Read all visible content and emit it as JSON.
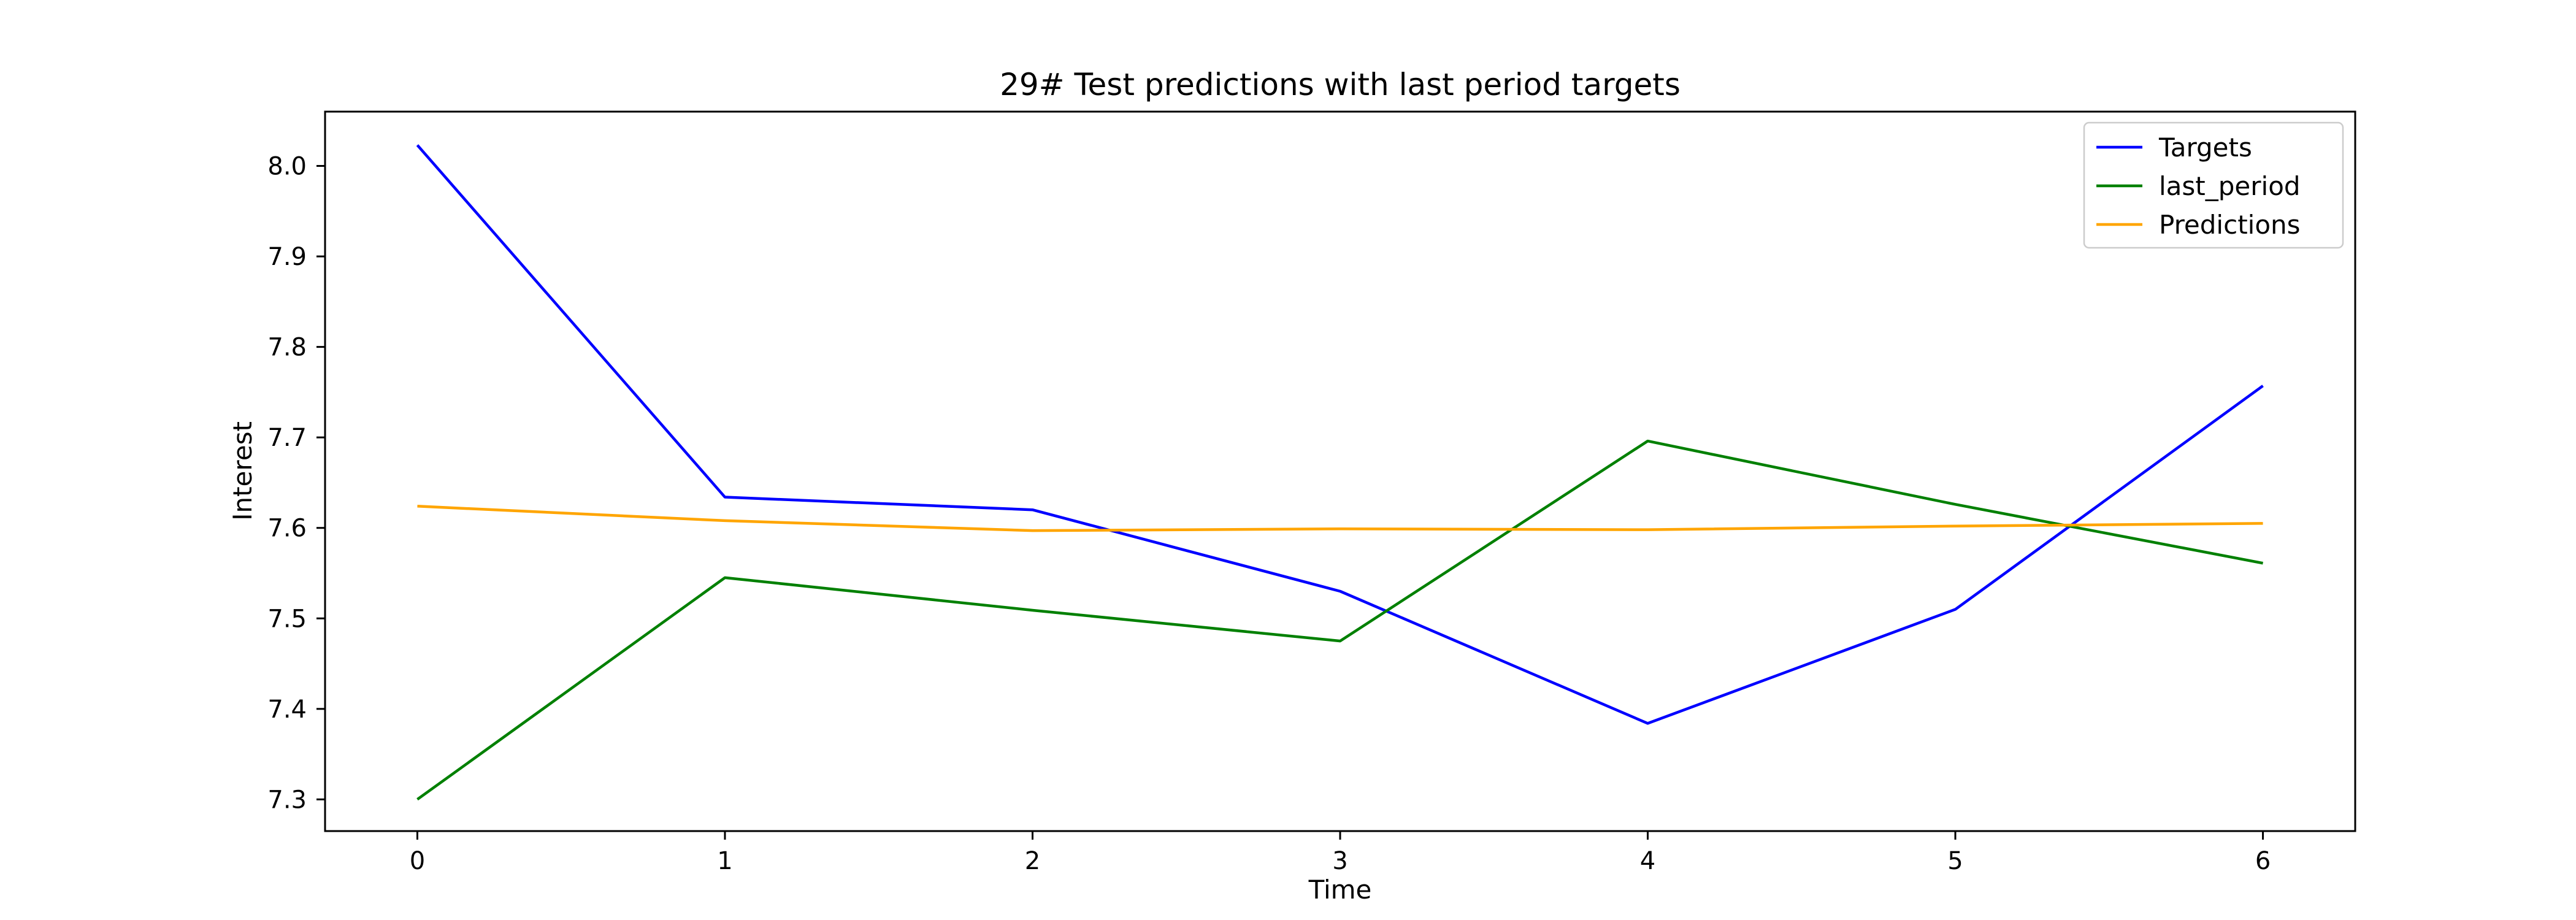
{
  "chart_data": {
    "type": "line",
    "title": "29# Test predictions with last period targets",
    "xlabel": "Time",
    "ylabel": "Interest",
    "x": [
      0,
      1,
      2,
      3,
      4,
      5,
      6
    ],
    "xticks": [
      "0",
      "1",
      "2",
      "3",
      "4",
      "5",
      "6"
    ],
    "yticks": [
      "7.3",
      "7.4",
      "7.5",
      "7.6",
      "7.7",
      "7.8",
      "7.9",
      "8.0"
    ],
    "xlim": [
      -0.3,
      6.3
    ],
    "ylim": [
      7.265,
      8.06
    ],
    "grid": false,
    "legend_position": "top-right",
    "series": [
      {
        "name": "Targets",
        "color": "#0000ff",
        "values": [
          8.023,
          7.634,
          7.62,
          7.53,
          7.384,
          7.51,
          7.757
        ]
      },
      {
        "name": "last_period",
        "color": "#008000",
        "values": [
          7.3,
          7.545,
          7.509,
          7.475,
          7.696,
          7.626,
          7.561
        ]
      },
      {
        "name": "Predictions",
        "color": "#ffa500",
        "values": [
          7.624,
          7.608,
          7.597,
          7.599,
          7.598,
          7.602,
          7.605
        ]
      }
    ]
  }
}
